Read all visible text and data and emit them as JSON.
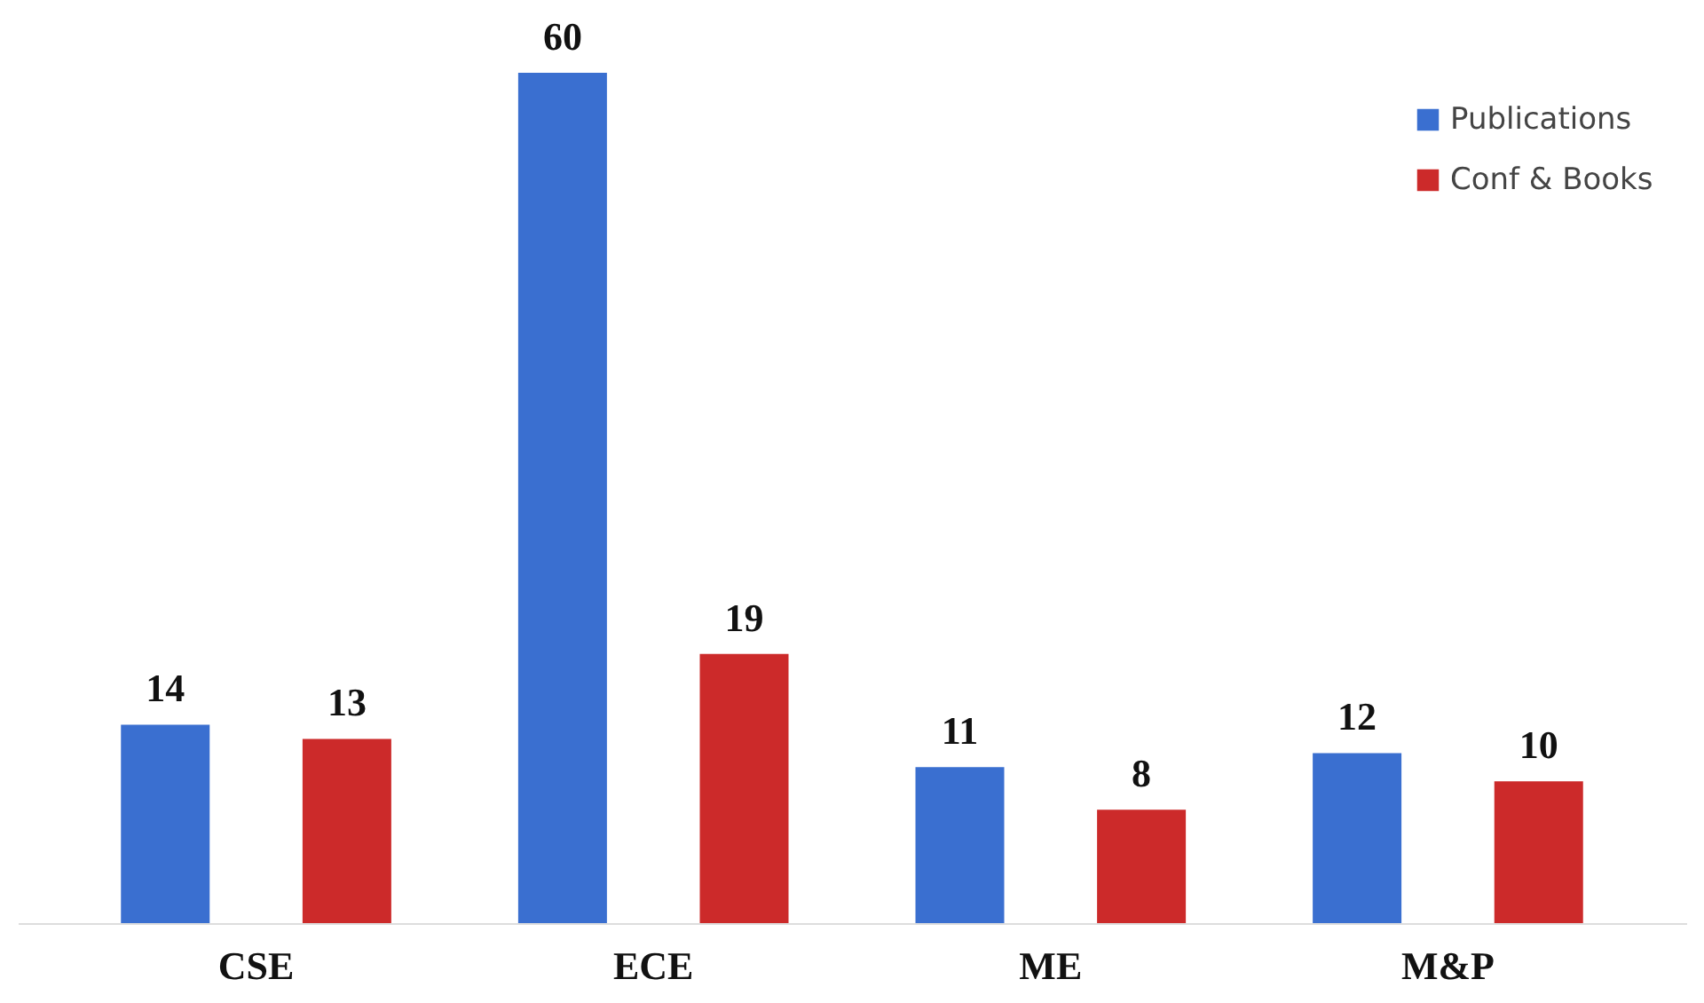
{
  "chart_data": {
    "type": "bar",
    "categories": [
      "CSE",
      "ECE",
      "ME",
      "M&P"
    ],
    "series": [
      {
        "name": "Publications",
        "color": "#3a6fd0",
        "values": [
          14,
          60,
          11,
          12
        ]
      },
      {
        "name": "Conf & Books",
        "color": "#cc2a2a",
        "values": [
          13,
          19,
          8,
          10
        ]
      }
    ],
    "data_labels": true,
    "legend": "top right",
    "grid": false
  }
}
